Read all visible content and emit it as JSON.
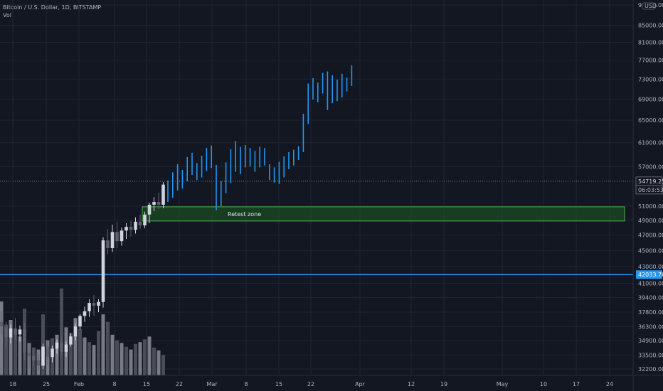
{
  "header": {
    "symbol": "Bitcoin / U.S. Dollar, 1D, BITSTAMP",
    "volume_label": "Vol"
  },
  "currency": "USD",
  "colors": {
    "background": "#131722",
    "grid": "#1f2433",
    "candle_up": "#d1d4dc",
    "candle_down": "#5d606b",
    "bar_blue": "#2196f3",
    "support_line": "#2196f3",
    "zone_fill": "#1b5e20",
    "zone_border": "#4caf50",
    "volume_up": "#787b86",
    "volume_down": "#4a4d57",
    "price_tag": "#131722",
    "support_tag": "#2196f3"
  },
  "chart_data": {
    "type": "candlestick",
    "x_tick_labels": [
      "18",
      "25",
      "Feb",
      "8",
      "15",
      "22",
      "Mar",
      "8",
      "15",
      "22",
      "Apr",
      "12",
      "19",
      "May",
      "10",
      "17",
      "24"
    ],
    "y_tick_labels": [
      "90000.00",
      "85000.00",
      "81000.00",
      "77000.00",
      "73000.00",
      "69000.00",
      "65000.00",
      "61000.00",
      "57000.00",
      "51000.00",
      "49000.00",
      "47000.00",
      "45000.00",
      "43000.00",
      "41000.00",
      "39400.00",
      "37800.00",
      "36300.00",
      "34900.00",
      "33500.00",
      "32200.00"
    ],
    "y_scale": "log",
    "historical_candles": [
      {
        "o": 36800,
        "h": 37900,
        "l": 35500,
        "c": 36300
      },
      {
        "o": 36300,
        "h": 36800,
        "l": 34200,
        "c": 35200
      },
      {
        "o": 35200,
        "h": 36500,
        "l": 34600,
        "c": 36100
      },
      {
        "o": 36100,
        "h": 37200,
        "l": 35000,
        "c": 35500
      },
      {
        "o": 35500,
        "h": 36400,
        "l": 34800,
        "c": 36000
      },
      {
        "o": 36000,
        "h": 36700,
        "l": 33000,
        "c": 33700
      },
      {
        "o": 33700,
        "h": 34500,
        "l": 32300,
        "c": 33400
      },
      {
        "o": 33400,
        "h": 34200,
        "l": 32500,
        "c": 33000
      },
      {
        "o": 33000,
        "h": 33600,
        "l": 32100,
        "c": 32500
      },
      {
        "o": 32500,
        "h": 34600,
        "l": 32200,
        "c": 34300
      },
      {
        "o": 34300,
        "h": 34900,
        "l": 32600,
        "c": 33300
      },
      {
        "o": 33300,
        "h": 34400,
        "l": 32800,
        "c": 34100
      },
      {
        "o": 34100,
        "h": 35000,
        "l": 33600,
        "c": 34700
      },
      {
        "o": 34700,
        "h": 35300,
        "l": 33500,
        "c": 33800
      },
      {
        "o": 33800,
        "h": 34800,
        "l": 33300,
        "c": 34500
      },
      {
        "o": 34500,
        "h": 35600,
        "l": 34300,
        "c": 35300
      },
      {
        "o": 35300,
        "h": 36600,
        "l": 34900,
        "c": 36300
      },
      {
        "o": 36300,
        "h": 37600,
        "l": 36000,
        "c": 37400
      },
      {
        "o": 37400,
        "h": 38400,
        "l": 36800,
        "c": 37900
      },
      {
        "o": 37900,
        "h": 39200,
        "l": 37300,
        "c": 38800
      },
      {
        "o": 38800,
        "h": 39700,
        "l": 37400,
        "c": 38500
      },
      {
        "o": 38500,
        "h": 39200,
        "l": 37800,
        "c": 38900
      },
      {
        "o": 38900,
        "h": 46700,
        "l": 38300,
        "c": 46300
      },
      {
        "o": 46300,
        "h": 47800,
        "l": 44500,
        "c": 45300
      },
      {
        "o": 45300,
        "h": 48400,
        "l": 44800,
        "c": 47400
      },
      {
        "o": 47400,
        "h": 48800,
        "l": 45300,
        "c": 46200
      },
      {
        "o": 46200,
        "h": 48000,
        "l": 45600,
        "c": 47600
      },
      {
        "o": 47600,
        "h": 48600,
        "l": 46500,
        "c": 48100
      },
      {
        "o": 48100,
        "h": 48900,
        "l": 46800,
        "c": 47700
      },
      {
        "o": 47700,
        "h": 49400,
        "l": 47200,
        "c": 48800
      },
      {
        "o": 48800,
        "h": 49800,
        "l": 47800,
        "c": 48300
      },
      {
        "o": 48300,
        "h": 50200,
        "l": 47900,
        "c": 49800
      },
      {
        "o": 49800,
        "h": 51500,
        "l": 48600,
        "c": 51200
      },
      {
        "o": 51200,
        "h": 52300,
        "l": 50300,
        "c": 51600
      },
      {
        "o": 51600,
        "h": 53000,
        "l": 50600,
        "c": 51200
      },
      {
        "o": 51200,
        "h": 54600,
        "l": 50700,
        "c": 54200
      }
    ],
    "projection_bars": [
      {
        "h": 54800,
        "l": 51600
      },
      {
        "h": 56100,
        "l": 52200
      },
      {
        "h": 57400,
        "l": 53300
      },
      {
        "h": 56500,
        "l": 53600
      },
      {
        "h": 58600,
        "l": 54700
      },
      {
        "h": 59300,
        "l": 55700
      },
      {
        "h": 57600,
        "l": 54900
      },
      {
        "h": 58800,
        "l": 55300
      },
      {
        "h": 60100,
        "l": 56300
      },
      {
        "h": 60500,
        "l": 56800
      },
      {
        "h": 57300,
        "l": 50400
      },
      {
        "h": 54700,
        "l": 51000
      },
      {
        "h": 57700,
        "l": 52900
      },
      {
        "h": 59900,
        "l": 54400
      },
      {
        "h": 61300,
        "l": 56200
      },
      {
        "h": 60300,
        "l": 55800
      },
      {
        "h": 60600,
        "l": 56900
      },
      {
        "h": 60100,
        "l": 57000
      },
      {
        "h": 59600,
        "l": 56200
      },
      {
        "h": 60300,
        "l": 56900
      },
      {
        "h": 60100,
        "l": 57200
      },
      {
        "h": 57400,
        "l": 54900
      },
      {
        "h": 56900,
        "l": 54500
      },
      {
        "h": 57800,
        "l": 54300
      },
      {
        "h": 58700,
        "l": 55300
      },
      {
        "h": 59400,
        "l": 56600
      },
      {
        "h": 59800,
        "l": 57200
      },
      {
        "h": 60400,
        "l": 58100
      },
      {
        "h": 66200,
        "l": 59400
      },
      {
        "h": 72100,
        "l": 64300
      },
      {
        "h": 73200,
        "l": 68900
      },
      {
        "h": 72300,
        "l": 68400
      },
      {
        "h": 74300,
        "l": 70100
      },
      {
        "h": 74600,
        "l": 66900
      },
      {
        "h": 73800,
        "l": 68200
      },
      {
        "h": 72900,
        "l": 68600
      },
      {
        "h": 74100,
        "l": 69300
      },
      {
        "h": 73300,
        "l": 70500
      },
      {
        "h": 75900,
        "l": 71600
      }
    ],
    "volume": [
      {
        "v": 0.8,
        "up": true
      },
      {
        "v": 0.55,
        "up": false
      },
      {
        "v": 0.6,
        "up": true
      },
      {
        "v": 0.48,
        "up": false
      },
      {
        "v": 0.42,
        "up": true
      },
      {
        "v": 0.72,
        "up": false
      },
      {
        "v": 0.35,
        "up": true
      },
      {
        "v": 0.3,
        "up": false
      },
      {
        "v": 0.28,
        "up": true
      },
      {
        "v": 0.66,
        "up": false
      },
      {
        "v": 0.38,
        "up": true
      },
      {
        "v": 0.4,
        "up": false
      },
      {
        "v": 0.44,
        "up": true
      },
      {
        "v": 0.94,
        "up": false
      },
      {
        "v": 0.52,
        "up": true
      },
      {
        "v": 0.46,
        "up": false
      },
      {
        "v": 0.62,
        "up": true
      },
      {
        "v": 0.5,
        "up": false
      },
      {
        "v": 0.41,
        "up": true
      },
      {
        "v": 0.36,
        "up": false
      },
      {
        "v": 0.33,
        "up": true
      },
      {
        "v": 0.48,
        "up": false
      },
      {
        "v": 0.66,
        "up": true
      },
      {
        "v": 0.58,
        "up": false
      },
      {
        "v": 0.44,
        "up": true
      },
      {
        "v": 0.38,
        "up": false
      },
      {
        "v": 0.35,
        "up": true
      },
      {
        "v": 0.31,
        "up": false
      },
      {
        "v": 0.28,
        "up": true
      },
      {
        "v": 0.34,
        "up": false
      },
      {
        "v": 0.36,
        "up": true
      },
      {
        "v": 0.39,
        "up": false
      },
      {
        "v": 0.42,
        "up": true
      },
      {
        "v": 0.3,
        "up": false
      },
      {
        "v": 0.27,
        "up": true
      },
      {
        "v": 0.22,
        "up": false
      }
    ],
    "support_line": {
      "value": 42033.7,
      "label": "42033.70"
    },
    "zone": {
      "label": "Retest zone",
      "low": 48900,
      "high": 50900
    },
    "current_price": {
      "value": 54719.25,
      "label": "54719.25",
      "countdown": "06:03:53"
    }
  }
}
